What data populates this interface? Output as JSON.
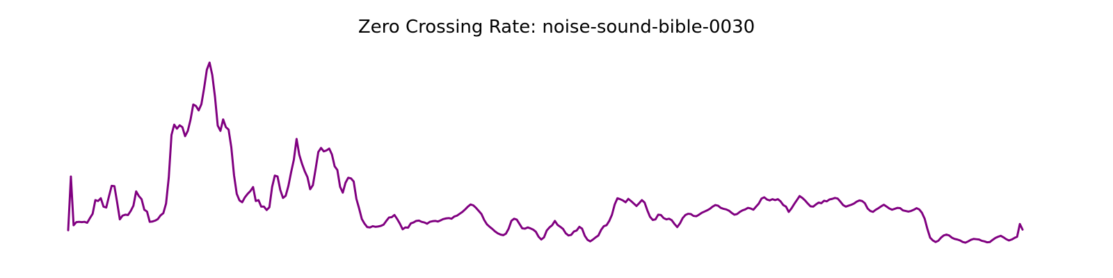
{
  "chart_data": {
    "type": "line",
    "title": "Zero Crossing Rate: noise-sound-bible-0030",
    "xlabel": "",
    "ylabel": "",
    "axes_visible": false,
    "grid": false,
    "legend": "none",
    "y_domain_note": "unitless, relative",
    "series": [
      {
        "color": "#800080",
        "values": [
          0.042,
          0.215,
          0.058,
          0.068,
          0.069,
          0.068,
          0.069,
          0.066,
          0.081,
          0.095,
          0.139,
          0.136,
          0.145,
          0.118,
          0.115,
          0.151,
          0.185,
          0.184,
          0.132,
          0.077,
          0.089,
          0.092,
          0.091,
          0.104,
          0.121,
          0.167,
          0.152,
          0.142,
          0.108,
          0.102,
          0.069,
          0.07,
          0.073,
          0.078,
          0.09,
          0.097,
          0.128,
          0.212,
          0.349,
          0.382,
          0.369,
          0.38,
          0.374,
          0.345,
          0.362,
          0.398,
          0.447,
          0.442,
          0.428,
          0.448,
          0.5,
          0.559,
          0.582,
          0.542,
          0.471,
          0.379,
          0.362,
          0.399,
          0.374,
          0.366,
          0.309,
          0.219,
          0.159,
          0.138,
          0.132,
          0.148,
          0.159,
          0.168,
          0.181,
          0.136,
          0.139,
          0.118,
          0.118,
          0.107,
          0.116,
          0.181,
          0.218,
          0.215,
          0.172,
          0.146,
          0.153,
          0.185,
          0.229,
          0.269,
          0.336,
          0.285,
          0.256,
          0.232,
          0.213,
          0.174,
          0.187,
          0.239,
          0.294,
          0.307,
          0.296,
          0.299,
          0.305,
          0.286,
          0.248,
          0.236,
          0.182,
          0.163,
          0.195,
          0.211,
          0.209,
          0.199,
          0.143,
          0.112,
          0.078,
          0.063,
          0.052,
          0.051,
          0.055,
          0.053,
          0.054,
          0.056,
          0.06,
          0.072,
          0.083,
          0.084,
          0.091,
          0.078,
          0.063,
          0.045,
          0.051,
          0.05,
          0.064,
          0.067,
          0.072,
          0.073,
          0.069,
          0.067,
          0.063,
          0.069,
          0.071,
          0.072,
          0.07,
          0.074,
          0.078,
          0.08,
          0.081,
          0.079,
          0.086,
          0.089,
          0.095,
          0.101,
          0.109,
          0.118,
          0.125,
          0.122,
          0.114,
          0.104,
          0.094,
          0.075,
          0.061,
          0.053,
          0.046,
          0.038,
          0.032,
          0.028,
          0.026,
          0.031,
          0.047,
          0.072,
          0.079,
          0.076,
          0.062,
          0.048,
          0.047,
          0.051,
          0.048,
          0.044,
          0.037,
          0.021,
          0.012,
          0.019,
          0.041,
          0.051,
          0.058,
          0.072,
          0.059,
          0.053,
          0.046,
          0.032,
          0.025,
          0.027,
          0.038,
          0.041,
          0.053,
          0.047,
          0.024,
          0.011,
          0.006,
          0.012,
          0.019,
          0.025,
          0.043,
          0.055,
          0.058,
          0.072,
          0.092,
          0.125,
          0.145,
          0.142,
          0.138,
          0.132,
          0.143,
          0.136,
          0.128,
          0.12,
          0.129,
          0.139,
          0.131,
          0.106,
          0.085,
          0.075,
          0.077,
          0.092,
          0.091,
          0.081,
          0.077,
          0.079,
          0.074,
          0.062,
          0.052,
          0.064,
          0.081,
          0.091,
          0.095,
          0.094,
          0.088,
          0.087,
          0.092,
          0.098,
          0.102,
          0.106,
          0.111,
          0.118,
          0.123,
          0.121,
          0.114,
          0.111,
          0.109,
          0.105,
          0.098,
          0.092,
          0.094,
          0.101,
          0.106,
          0.109,
          0.114,
          0.112,
          0.108,
          0.118,
          0.128,
          0.144,
          0.148,
          0.141,
          0.138,
          0.142,
          0.139,
          0.142,
          0.135,
          0.123,
          0.118,
          0.101,
          0.112,
          0.126,
          0.139,
          0.152,
          0.146,
          0.138,
          0.128,
          0.119,
          0.118,
          0.125,
          0.131,
          0.129,
          0.137,
          0.135,
          0.141,
          0.143,
          0.146,
          0.144,
          0.134,
          0.123,
          0.118,
          0.121,
          0.124,
          0.128,
          0.134,
          0.138,
          0.136,
          0.129,
          0.112,
          0.104,
          0.101,
          0.108,
          0.113,
          0.119,
          0.124,
          0.118,
          0.112,
          0.108,
          0.111,
          0.114,
          0.113,
          0.106,
          0.104,
          0.102,
          0.104,
          0.108,
          0.113,
          0.109,
          0.098,
          0.079,
          0.046,
          0.018,
          0.009,
          0.004,
          0.008,
          0.018,
          0.025,
          0.028,
          0.025,
          0.018,
          0.014,
          0.012,
          0.009,
          0.004,
          0.002,
          0.006,
          0.011,
          0.014,
          0.013,
          0.012,
          0.008,
          0.006,
          0.003,
          0.004,
          0.011,
          0.017,
          0.021,
          0.024,
          0.019,
          0.013,
          0.009,
          0.012,
          0.017,
          0.021,
          0.062,
          0.044
        ]
      }
    ],
    "ylim": [
      0,
      0.6
    ],
    "xlim": [
      0,
      1
    ]
  }
}
